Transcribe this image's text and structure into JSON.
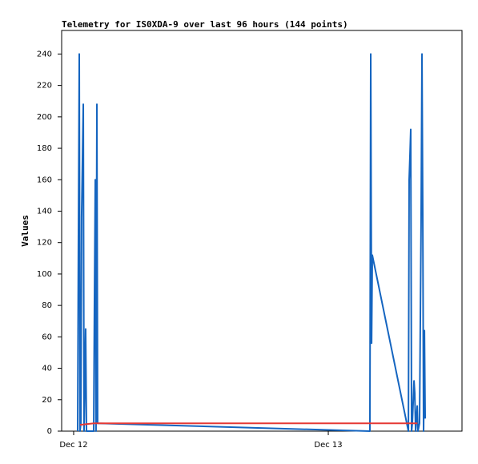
{
  "chart_data": {
    "type": "line",
    "title": "Telemetry for IS0XDA-9 over last 96 hours (144 points)",
    "y_label": "Values",
    "xlim": [
      -1.13,
      36.6
    ],
    "xticks": [
      {
        "value": 0,
        "label": "Dec 12"
      },
      {
        "value": 24,
        "label": "Dec 13"
      }
    ],
    "ylim": [
      0,
      255
    ],
    "yticks": [
      0,
      20,
      40,
      60,
      80,
      100,
      120,
      140,
      160,
      180,
      200,
      220,
      240
    ],
    "series": [
      {
        "color": "#1565c0",
        "x": [
          0.38,
          0.45,
          0.53,
          0.6,
          0.68,
          0.75,
          0.91,
          0.98,
          1.06,
          1.13,
          1.21,
          1.89,
          1.96,
          2.04,
          2.11,
          2.19,
          2.26,
          27.92,
          28.0,
          28.08,
          28.15,
          31.55,
          31.62,
          31.7,
          31.77,
          31.85,
          31.92,
          32.08,
          32.15,
          32.23,
          32.3,
          32.38,
          32.45,
          32.6,
          32.75,
          32.83,
          32.91,
          32.98,
          33.06,
          33.13
        ],
        "values": [
          0,
          120,
          240,
          0,
          5,
          136,
          208,
          0,
          32,
          65,
          0,
          0,
          80,
          160,
          0,
          208,
          5,
          0,
          240,
          56,
          112,
          0,
          160,
          176,
          192,
          0,
          5,
          32,
          24,
          0,
          8,
          16,
          0,
          5,
          136,
          240,
          128,
          0,
          64,
          8
        ]
      },
      {
        "color": "#e53935",
        "x": [
          0.6,
          1.9,
          32.4
        ],
        "values": [
          4,
          5,
          5
        ]
      }
    ]
  }
}
